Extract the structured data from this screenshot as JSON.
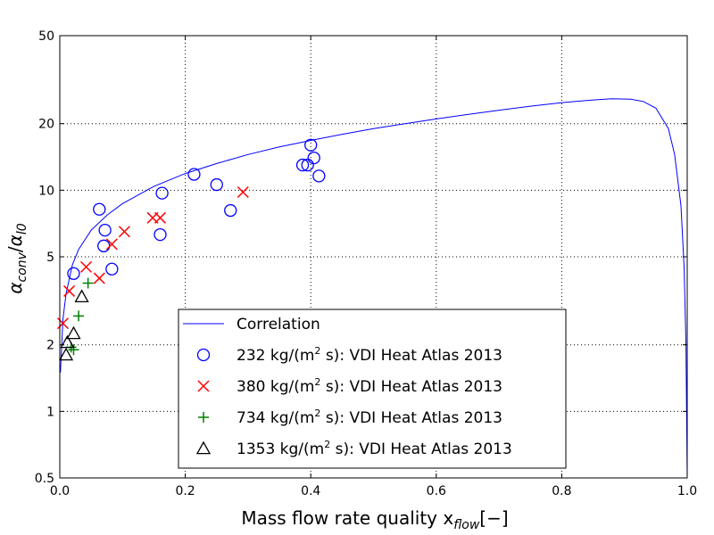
{
  "chart_data": {
    "type": "scatter",
    "xlabel": "Mass flow rate quality x",
    "xlabel_sub": "flow",
    "xlabel_tail": "[−]",
    "ylabel_num": "α",
    "ylabel_num_sub": "conv",
    "ylabel_den": "α",
    "ylabel_den_sub": "l0",
    "xlim": [
      0,
      1
    ],
    "ylim": [
      0.5,
      50
    ],
    "yscale": "log",
    "grid": true,
    "legend_position": "lower center",
    "x_ticks": [
      {
        "value": 0,
        "label": "0.0"
      },
      {
        "value": 0.2,
        "label": "0.2"
      },
      {
        "value": 0.4,
        "label": "0.4"
      },
      {
        "value": 0.6,
        "label": "0.6"
      },
      {
        "value": 0.8,
        "label": "0.8"
      },
      {
        "value": 1.0,
        "label": "1.0"
      }
    ],
    "y_ticks": [
      {
        "value": 0.5,
        "label": "0.5"
      },
      {
        "value": 1,
        "label": "1"
      },
      {
        "value": 2,
        "label": "2"
      },
      {
        "value": 5,
        "label": "5"
      },
      {
        "value": 10,
        "label": "10"
      },
      {
        "value": 20,
        "label": "20"
      },
      {
        "value": 50,
        "label": "50"
      }
    ],
    "line_series": {
      "name": "Correlation",
      "color": "#0000ff",
      "points": [
        [
          0.001,
          1.5
        ],
        [
          0.005,
          2.6
        ],
        [
          0.01,
          3.4
        ],
        [
          0.02,
          4.6
        ],
        [
          0.03,
          5.4
        ],
        [
          0.05,
          6.6
        ],
        [
          0.075,
          7.7
        ],
        [
          0.1,
          8.7
        ],
        [
          0.15,
          10.4
        ],
        [
          0.2,
          11.9
        ],
        [
          0.25,
          13.2
        ],
        [
          0.3,
          14.5
        ],
        [
          0.35,
          15.7
        ],
        [
          0.4,
          16.8
        ],
        [
          0.45,
          17.9
        ],
        [
          0.5,
          19.0
        ],
        [
          0.55,
          20.0
        ],
        [
          0.6,
          21.0
        ],
        [
          0.65,
          22.0
        ],
        [
          0.7,
          23.0
        ],
        [
          0.75,
          24.0
        ],
        [
          0.8,
          24.9
        ],
        [
          0.85,
          25.6
        ],
        [
          0.88,
          25.9
        ],
        [
          0.91,
          25.8
        ],
        [
          0.93,
          25.2
        ],
        [
          0.95,
          23.5
        ],
        [
          0.97,
          19.0
        ],
        [
          0.98,
          14.5
        ],
        [
          0.99,
          8.5
        ],
        [
          0.995,
          4.5
        ],
        [
          0.998,
          2.0
        ],
        [
          1.0,
          0.5
        ]
      ]
    },
    "scatter_series": [
      {
        "name": "232 kg/(m² s): VDI Heat Atlas 2013",
        "marker": "circle",
        "color": "#0000ff",
        "points": [
          [
            0.022,
            4.2
          ],
          [
            0.063,
            8.2
          ],
          [
            0.07,
            5.6
          ],
          [
            0.072,
            6.6
          ],
          [
            0.083,
            4.4
          ],
          [
            0.16,
            6.3
          ],
          [
            0.163,
            9.7
          ],
          [
            0.214,
            11.8
          ],
          [
            0.25,
            10.6
          ],
          [
            0.272,
            8.1
          ],
          [
            0.387,
            13.0
          ],
          [
            0.395,
            13.0
          ],
          [
            0.4,
            16.0
          ],
          [
            0.405,
            14.0
          ],
          [
            0.413,
            11.6
          ]
        ]
      },
      {
        "name": "380 kg/(m² s): VDI Heat Atlas 2013",
        "marker": "x",
        "color": "#ff0000",
        "points": [
          [
            0.005,
            2.5
          ],
          [
            0.015,
            3.5
          ],
          [
            0.042,
            4.5
          ],
          [
            0.063,
            4.0
          ],
          [
            0.083,
            5.7
          ],
          [
            0.103,
            6.5
          ],
          [
            0.148,
            7.5
          ],
          [
            0.16,
            7.5
          ],
          [
            0.292,
            9.8
          ]
        ]
      },
      {
        "name": "734 kg/(m² s): VDI Heat Atlas 2013",
        "marker": "plus",
        "color": "#008000",
        "points": [
          [
            0.018,
            1.95
          ],
          [
            0.022,
            1.9
          ],
          [
            0.03,
            2.7
          ],
          [
            0.045,
            3.8
          ]
        ]
      },
      {
        "name": "1353 kg/(m² s): VDI Heat Atlas 2013",
        "marker": "triangle",
        "color": "#000000",
        "points": [
          [
            0.01,
            1.8
          ],
          [
            0.012,
            2.05
          ],
          [
            0.022,
            2.25
          ],
          [
            0.035,
            3.3
          ]
        ]
      }
    ],
    "legend": [
      {
        "label": "Correlation",
        "marker": "line",
        "color": "#0000ff"
      },
      {
        "label_pre": "232 kg/(m",
        "label_post": " s): VDI Heat Atlas 2013",
        "marker": "circle",
        "color": "#0000ff"
      },
      {
        "label_pre": "380 kg/(m",
        "label_post": " s): VDI Heat Atlas 2013",
        "marker": "x",
        "color": "#ff0000"
      },
      {
        "label_pre": "734 kg/(m",
        "label_post": " s): VDI Heat Atlas 2013",
        "marker": "plus",
        "color": "#008000"
      },
      {
        "label_pre": "1353 kg/(m",
        "label_post": " s): VDI Heat Atlas 2013",
        "marker": "triangle",
        "color": "#000000"
      }
    ]
  }
}
